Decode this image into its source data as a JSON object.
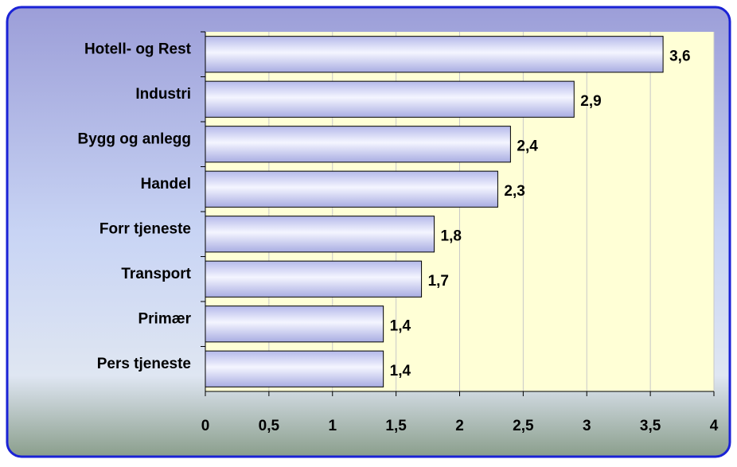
{
  "chart_data": {
    "type": "bar",
    "orientation": "horizontal",
    "categories": [
      "Hotell- og Rest",
      "Industri",
      "Bygg og anlegg",
      "Handel",
      "Forr tjeneste",
      "Transport",
      "Primær",
      "Pers tjeneste"
    ],
    "values": [
      3.6,
      2.9,
      2.4,
      2.3,
      1.8,
      1.7,
      1.4,
      1.4
    ],
    "value_labels": [
      "3,6",
      "2,9",
      "2,4",
      "2,3",
      "1,8",
      "1,7",
      "1,4",
      "1,4"
    ],
    "color": "#c9cdf2",
    "xlim": [
      0,
      4
    ],
    "xticks": [
      0,
      {
        "value": 0.5,
        "label": "0,5"
      },
      1,
      {
        "value": 1.5,
        "label": "1,5"
      },
      2,
      {
        "value": 2.5,
        "label": "2,5"
      },
      3,
      {
        "value": 3.5,
        "label": "3,5"
      },
      4
    ],
    "grid": true
  }
}
